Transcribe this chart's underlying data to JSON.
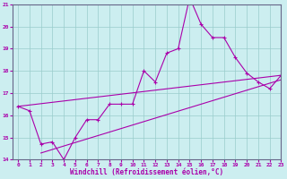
{
  "xlabel": "Windchill (Refroidissement éolien,°C)",
  "background_color": "#cceef0",
  "line_color": "#aa00aa",
  "grid_color": "#99cccc",
  "x_data": [
    0,
    1,
    2,
    3,
    4,
    5,
    6,
    7,
    8,
    9,
    10,
    11,
    12,
    13,
    14,
    15,
    16,
    17,
    18,
    19,
    20,
    21,
    22,
    23
  ],
  "y_main": [
    16.4,
    16.2,
    14.7,
    14.8,
    14.0,
    15.0,
    15.8,
    15.8,
    16.5,
    16.5,
    16.5,
    18.0,
    17.5,
    18.8,
    19.0,
    21.3,
    20.1,
    19.5,
    19.5,
    18.6,
    17.9,
    17.5,
    17.2,
    17.8
  ],
  "y_upper_start": 16.4,
  "y_upper_end": 17.8,
  "y_lower_start": 14.3,
  "y_lower_end": 17.6,
  "x_lower_start": 2,
  "ylim": [
    14,
    21
  ],
  "xlim": [
    -0.5,
    23
  ],
  "yticks": [
    14,
    15,
    16,
    17,
    18,
    19,
    20,
    21
  ],
  "xticks": [
    0,
    1,
    2,
    3,
    4,
    5,
    6,
    7,
    8,
    9,
    10,
    11,
    12,
    13,
    14,
    15,
    16,
    17,
    18,
    19,
    20,
    21,
    22,
    23
  ]
}
